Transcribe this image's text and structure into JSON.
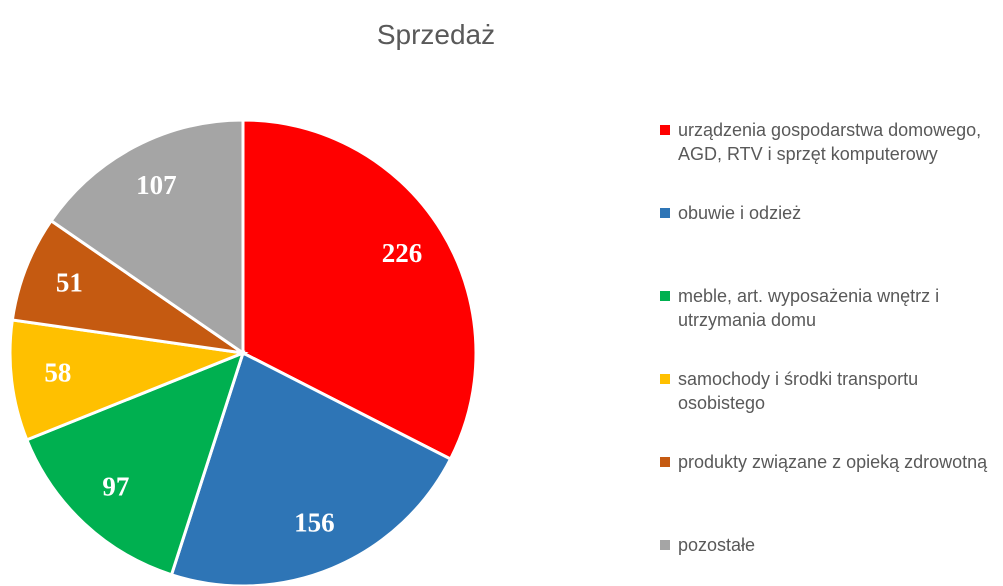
{
  "chart_data": {
    "type": "pie",
    "title": "Sprzedaż",
    "categories": [
      "urządzenia gospodarstwa domowego, AGD, RTV i sprzęt komputerowy",
      "obuwie i odzież",
      "meble, art. wyposażenia wnętrz i utrzymania domu",
      "samochody i środki transportu osobistego",
      "produkty związane z opieką zdrowotną",
      "pozostałe"
    ],
    "values": [
      226,
      156,
      97,
      58,
      51,
      107
    ],
    "colors": [
      "#ff0000",
      "#2e75b6",
      "#00b050",
      "#ffc000",
      "#c55a11",
      "#a5a5a5"
    ],
    "legend": "right"
  }
}
